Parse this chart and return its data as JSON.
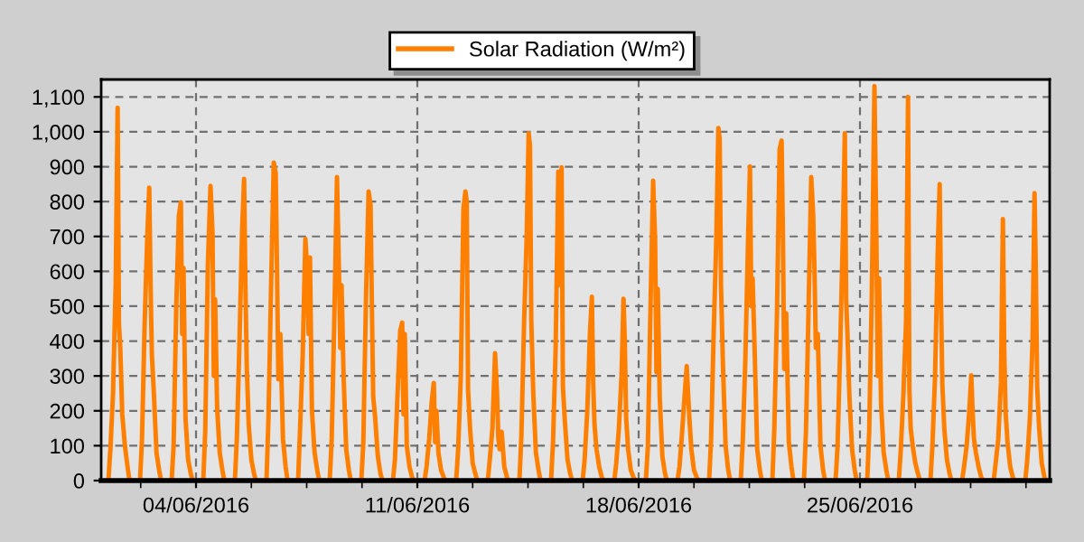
{
  "chart_data": {
    "type": "line",
    "x": [
      "2016-06-01T05:30",
      "2016-06-01T07:00",
      "2016-06-01T09:00",
      "2016-06-01T11:00",
      "2016-06-01T12:30",
      "2016-06-01T13:30",
      "2016-06-01T14:30",
      "2016-06-01T16:00",
      "2016-06-01T18:00",
      "2016-06-01T20:00",
      "2016-06-01T21:30",
      "2016-06-02T05:30",
      "2016-06-02T07:00",
      "2016-06-02T09:00",
      "2016-06-02T11:00",
      "2016-06-02T12:30",
      "2016-06-02T13:30",
      "2016-06-02T14:30",
      "2016-06-02T16:00",
      "2016-06-02T18:00",
      "2016-06-02T20:00",
      "2016-06-02T21:30",
      "2016-06-03T05:30",
      "2016-06-03T07:00",
      "2016-06-03T09:00",
      "2016-06-03T11:00",
      "2016-06-03T12:30",
      "2016-06-03T13:30",
      "2016-06-03T14:30",
      "2016-06-03T16:00",
      "2016-06-03T18:00",
      "2016-06-03T20:00",
      "2016-06-03T21:30",
      "2016-06-04T05:30",
      "2016-06-04T07:00",
      "2016-06-04T09:00",
      "2016-06-04T11:00",
      "2016-06-04T12:30",
      "2016-06-04T13:30",
      "2016-06-04T14:30",
      "2016-06-04T16:00",
      "2016-06-04T18:00",
      "2016-06-04T20:00",
      "2016-06-04T21:30",
      "2016-06-05T05:30",
      "2016-06-05T07:00",
      "2016-06-05T09:00",
      "2016-06-05T11:00",
      "2016-06-05T12:30",
      "2016-06-05T13:30",
      "2016-06-05T14:30",
      "2016-06-05T16:00",
      "2016-06-05T18:00",
      "2016-06-05T20:00",
      "2016-06-05T21:30",
      "2016-06-06T05:30",
      "2016-06-06T07:00",
      "2016-06-06T09:00",
      "2016-06-06T11:00",
      "2016-06-06T12:30",
      "2016-06-06T13:30",
      "2016-06-06T14:30",
      "2016-06-06T16:00",
      "2016-06-06T18:00",
      "2016-06-06T20:00",
      "2016-06-06T21:30",
      "2016-06-07T05:30",
      "2016-06-07T07:00",
      "2016-06-07T09:00",
      "2016-06-07T11:00",
      "2016-06-07T12:30",
      "2016-06-07T13:30",
      "2016-06-07T14:30",
      "2016-06-07T16:00",
      "2016-06-07T18:00",
      "2016-06-07T20:00",
      "2016-06-07T21:30",
      "2016-06-08T05:30",
      "2016-06-08T07:00",
      "2016-06-08T09:00",
      "2016-06-08T11:00",
      "2016-06-08T12:30",
      "2016-06-08T13:30",
      "2016-06-08T14:30",
      "2016-06-08T16:00",
      "2016-06-08T18:00",
      "2016-06-08T20:00",
      "2016-06-08T21:30",
      "2016-06-09T05:30",
      "2016-06-09T07:00",
      "2016-06-09T09:00",
      "2016-06-09T11:00",
      "2016-06-09T12:30",
      "2016-06-09T13:30",
      "2016-06-09T14:30",
      "2016-06-09T16:00",
      "2016-06-09T18:00",
      "2016-06-09T20:00",
      "2016-06-09T21:30",
      "2016-06-10T05:30",
      "2016-06-10T07:00",
      "2016-06-10T09:00",
      "2016-06-10T11:00",
      "2016-06-10T12:30",
      "2016-06-10T13:30",
      "2016-06-10T14:30",
      "2016-06-10T16:00",
      "2016-06-10T18:00",
      "2016-06-10T20:00",
      "2016-06-10T21:30",
      "2016-06-11T05:30",
      "2016-06-11T07:00",
      "2016-06-11T09:00",
      "2016-06-11T11:00",
      "2016-06-11T12:30",
      "2016-06-11T13:30",
      "2016-06-11T14:30",
      "2016-06-11T16:00",
      "2016-06-11T18:00",
      "2016-06-11T20:00",
      "2016-06-11T21:30",
      "2016-06-12T05:30",
      "2016-06-12T07:00",
      "2016-06-12T09:00",
      "2016-06-12T11:00",
      "2016-06-12T12:30",
      "2016-06-12T13:30",
      "2016-06-12T14:30",
      "2016-06-12T16:00",
      "2016-06-12T18:00",
      "2016-06-12T20:00",
      "2016-06-12T21:30",
      "2016-06-13T05:30",
      "2016-06-13T07:00",
      "2016-06-13T09:00",
      "2016-06-13T11:00",
      "2016-06-13T12:30",
      "2016-06-13T13:30",
      "2016-06-13T14:30",
      "2016-06-13T16:00",
      "2016-06-13T18:00",
      "2016-06-13T20:00",
      "2016-06-13T21:30",
      "2016-06-14T05:30",
      "2016-06-14T07:00",
      "2016-06-14T09:00",
      "2016-06-14T11:00",
      "2016-06-14T12:30",
      "2016-06-14T13:30",
      "2016-06-14T14:30",
      "2016-06-14T16:00",
      "2016-06-14T18:00",
      "2016-06-14T20:00",
      "2016-06-14T21:30",
      "2016-06-15T05:30",
      "2016-06-15T07:00",
      "2016-06-15T09:00",
      "2016-06-15T11:00",
      "2016-06-15T12:30",
      "2016-06-15T13:30",
      "2016-06-15T14:30",
      "2016-06-15T16:00",
      "2016-06-15T18:00",
      "2016-06-15T20:00",
      "2016-06-15T21:30",
      "2016-06-16T05:30",
      "2016-06-16T07:00",
      "2016-06-16T09:00",
      "2016-06-16T11:00",
      "2016-06-16T12:30",
      "2016-06-16T13:30",
      "2016-06-16T14:30",
      "2016-06-16T16:00",
      "2016-06-16T18:00",
      "2016-06-16T20:00",
      "2016-06-16T21:30",
      "2016-06-17T05:30",
      "2016-06-17T07:00",
      "2016-06-17T09:00",
      "2016-06-17T11:00",
      "2016-06-17T12:30",
      "2016-06-17T13:30",
      "2016-06-17T14:30",
      "2016-06-17T16:00",
      "2016-06-17T18:00",
      "2016-06-17T20:00",
      "2016-06-17T21:30",
      "2016-06-18T05:30",
      "2016-06-18T07:00",
      "2016-06-18T09:00",
      "2016-06-18T11:00",
      "2016-06-18T12:30",
      "2016-06-18T13:30",
      "2016-06-18T14:30",
      "2016-06-18T16:00",
      "2016-06-18T18:00",
      "2016-06-18T20:00",
      "2016-06-18T21:30",
      "2016-06-19T05:30",
      "2016-06-19T07:00",
      "2016-06-19T09:00",
      "2016-06-19T11:00",
      "2016-06-19T12:30",
      "2016-06-19T13:30",
      "2016-06-19T14:30",
      "2016-06-19T16:00",
      "2016-06-19T18:00",
      "2016-06-19T20:00",
      "2016-06-19T21:30",
      "2016-06-20T05:30",
      "2016-06-20T07:00",
      "2016-06-20T09:00",
      "2016-06-20T11:00",
      "2016-06-20T12:30",
      "2016-06-20T13:30",
      "2016-06-20T14:30",
      "2016-06-20T16:00",
      "2016-06-20T18:00",
      "2016-06-20T20:00",
      "2016-06-20T21:30",
      "2016-06-21T05:30",
      "2016-06-21T07:00",
      "2016-06-21T09:00",
      "2016-06-21T11:00",
      "2016-06-21T12:30",
      "2016-06-21T13:30",
      "2016-06-21T14:30",
      "2016-06-21T16:00",
      "2016-06-21T18:00",
      "2016-06-21T20:00",
      "2016-06-21T21:30",
      "2016-06-22T05:30",
      "2016-06-22T07:00",
      "2016-06-22T09:00",
      "2016-06-22T11:00",
      "2016-06-22T12:30",
      "2016-06-22T13:30",
      "2016-06-22T14:30",
      "2016-06-22T16:00",
      "2016-06-22T18:00",
      "2016-06-22T20:00",
      "2016-06-22T21:30",
      "2016-06-23T05:30",
      "2016-06-23T07:00",
      "2016-06-23T09:00",
      "2016-06-23T11:00",
      "2016-06-23T12:30",
      "2016-06-23T13:30",
      "2016-06-23T14:30",
      "2016-06-23T16:00",
      "2016-06-23T18:00",
      "2016-06-23T20:00",
      "2016-06-23T21:30",
      "2016-06-24T05:30",
      "2016-06-24T07:00",
      "2016-06-24T09:00",
      "2016-06-24T11:00",
      "2016-06-24T12:30",
      "2016-06-24T13:30",
      "2016-06-24T14:30",
      "2016-06-24T16:00",
      "2016-06-24T18:00",
      "2016-06-24T20:00",
      "2016-06-24T21:30",
      "2016-06-25T05:30",
      "2016-06-25T07:00",
      "2016-06-25T09:00",
      "2016-06-25T11:00",
      "2016-06-25T12:30",
      "2016-06-25T13:30",
      "2016-06-25T14:30",
      "2016-06-25T16:00",
      "2016-06-25T18:00",
      "2016-06-25T20:00",
      "2016-06-25T21:30",
      "2016-06-26T05:30",
      "2016-06-26T07:00",
      "2016-06-26T09:00",
      "2016-06-26T11:00",
      "2016-06-26T12:30",
      "2016-06-26T13:30",
      "2016-06-26T14:30",
      "2016-06-26T16:00",
      "2016-06-26T18:00",
      "2016-06-26T20:00",
      "2016-06-26T21:30",
      "2016-06-27T05:30",
      "2016-06-27T07:00",
      "2016-06-27T09:00",
      "2016-06-27T11:00",
      "2016-06-27T12:30",
      "2016-06-27T13:30",
      "2016-06-27T14:30",
      "2016-06-27T16:00",
      "2016-06-27T18:00",
      "2016-06-27T20:00",
      "2016-06-27T21:30",
      "2016-06-28T05:30",
      "2016-06-28T07:00",
      "2016-06-28T09:00",
      "2016-06-28T11:00",
      "2016-06-28T12:30",
      "2016-06-28T13:30",
      "2016-06-28T14:30",
      "2016-06-28T16:00",
      "2016-06-28T18:00",
      "2016-06-28T20:00",
      "2016-06-28T21:30",
      "2016-06-29T05:30",
      "2016-06-29T07:00",
      "2016-06-29T09:00",
      "2016-06-29T11:00",
      "2016-06-29T12:30",
      "2016-06-29T13:30",
      "2016-06-29T14:30",
      "2016-06-29T16:00",
      "2016-06-29T18:00",
      "2016-06-29T20:00",
      "2016-06-29T21:30",
      "2016-06-30T05:30",
      "2016-06-30T07:00",
      "2016-06-30T09:00",
      "2016-06-30T11:00",
      "2016-06-30T12:30",
      "2016-06-30T13:30",
      "2016-06-30T14:30",
      "2016-06-30T16:00",
      "2016-06-30T18:00",
      "2016-06-30T20:00",
      "2016-06-30T21:30"
    ],
    "series": [
      {
        "name": "Solar Radiation (W/m²)",
        "color": "#ff8000",
        "values": [
          0,
          90,
          250,
          560,
          1069,
          450,
          380,
          190,
          100,
          40,
          0,
          0,
          120,
          450,
          700,
          840,
          560,
          360,
          250,
          80,
          30,
          0,
          0,
          100,
          500,
          760,
          798,
          420,
          610,
          180,
          60,
          20,
          0,
          0,
          140,
          620,
          845,
          710,
          300,
          520,
          210,
          80,
          30,
          0,
          0,
          120,
          400,
          720,
          865,
          560,
          330,
          160,
          60,
          20,
          0,
          0,
          180,
          560,
          912,
          880,
          600,
          290,
          420,
          120,
          40,
          0,
          0,
          150,
          360,
          693,
          600,
          420,
          640,
          200,
          80,
          30,
          0,
          0,
          120,
          470,
          870,
          600,
          380,
          560,
          300,
          90,
          30,
          0,
          0,
          110,
          520,
          829,
          790,
          500,
          240,
          180,
          70,
          20,
          0,
          0,
          60,
          250,
          430,
          453,
          190,
          420,
          100,
          40,
          10,
          0,
          0,
          40,
          120,
          230,
          280,
          110,
          200,
          80,
          30,
          10,
          0,
          0,
          90,
          300,
          780,
          829,
          800,
          260,
          150,
          50,
          20,
          0,
          0,
          60,
          150,
          365,
          250,
          120,
          90,
          140,
          40,
          10,
          0,
          0,
          130,
          450,
          700,
          996,
          960,
          460,
          250,
          80,
          30,
          0,
          0,
          110,
          380,
          886,
          560,
          898,
          270,
          170,
          60,
          20,
          0,
          0,
          60,
          200,
          420,
          527,
          280,
          160,
          90,
          40,
          10,
          0,
          0,
          50,
          150,
          300,
          521,
          400,
          180,
          90,
          30,
          10,
          0,
          0,
          100,
          500,
          860,
          690,
          310,
          550,
          240,
          70,
          20,
          0,
          0,
          40,
          140,
          250,
          328,
          250,
          180,
          90,
          30,
          10,
          0,
          0,
          120,
          430,
          700,
          1011,
          980,
          560,
          330,
          100,
          30,
          0,
          0,
          110,
          350,
          680,
          901,
          500,
          580,
          380,
          90,
          30,
          0,
          0,
          150,
          480,
          950,
          975,
          710,
          320,
          480,
          110,
          40,
          0,
          0,
          140,
          500,
          870,
          760,
          600,
          380,
          420,
          100,
          30,
          0,
          0,
          100,
          380,
          700,
          996,
          520,
          420,
          240,
          90,
          30,
          0,
          0,
          140,
          540,
          1131,
          680,
          300,
          580,
          220,
          80,
          30,
          0,
          0,
          90,
          250,
          460,
          1100,
          260,
          150,
          100,
          50,
          20,
          0,
          0,
          100,
          300,
          650,
          850,
          520,
          280,
          150,
          60,
          20,
          0,
          0,
          40,
          100,
          200,
          302,
          200,
          120,
          80,
          40,
          10,
          0,
          0,
          50,
          120,
          280,
          750,
          380,
          200,
          110,
          40,
          10,
          0,
          0,
          60,
          180,
          400,
          824,
          600,
          270,
          150,
          50,
          10,
          0
        ]
      }
    ],
    "xlim": [
      "2016-06-01",
      "2016-07-01"
    ],
    "xticks": [
      {
        "value": "2016-06-02T06:00",
        "label": null
      },
      {
        "value": "2016-06-04",
        "label": "04/06/2016"
      },
      {
        "value": "2016-06-05T18:00",
        "label": null
      },
      {
        "value": "2016-06-07T12:00",
        "label": null
      },
      {
        "value": "2016-06-09T06:00",
        "label": null
      },
      {
        "value": "2016-06-11",
        "label": "11/06/2016"
      },
      {
        "value": "2016-06-12T18:00",
        "label": null
      },
      {
        "value": "2016-06-14T12:00",
        "label": null
      },
      {
        "value": "2016-06-16T06:00",
        "label": null
      },
      {
        "value": "2016-06-18",
        "label": "18/06/2016"
      },
      {
        "value": "2016-06-19T18:00",
        "label": null
      },
      {
        "value": "2016-06-21T12:00",
        "label": null
      },
      {
        "value": "2016-06-23T06:00",
        "label": null
      },
      {
        "value": "2016-06-25",
        "label": "25/06/2016"
      },
      {
        "value": "2016-06-26T18:00",
        "label": null
      },
      {
        "value": "2016-06-28T12:00",
        "label": null
      },
      {
        "value": "2016-06-30T06:00",
        "label": null
      }
    ],
    "ylim": [
      0,
      1150
    ],
    "yticks": [
      0,
      100,
      200,
      300,
      400,
      500,
      600,
      700,
      800,
      900,
      {
        "value": 1000,
        "label": "1,000"
      },
      {
        "value": 1100,
        "label": "1,100"
      }
    ],
    "grid": true,
    "legend": "top",
    "marker": "none",
    "line_style": "solid"
  }
}
